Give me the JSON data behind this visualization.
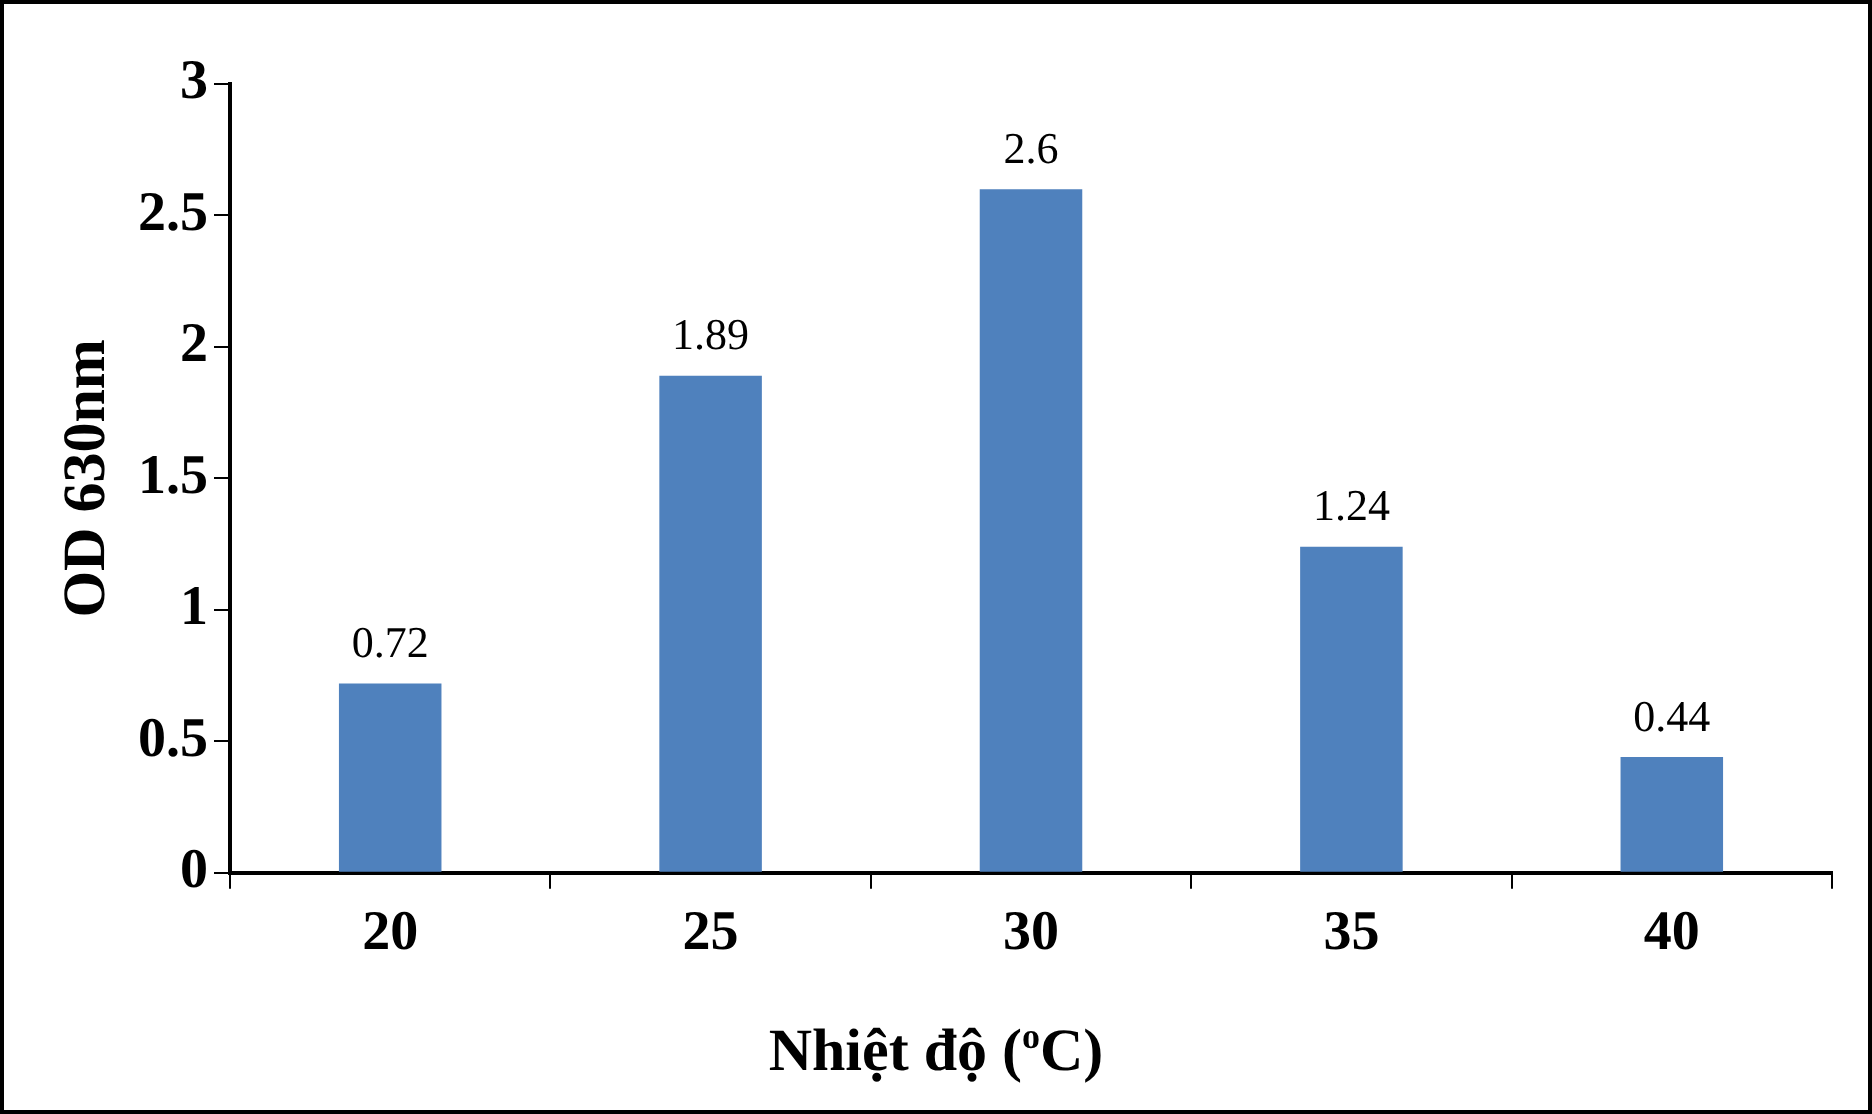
{
  "chart_data": {
    "type": "bar",
    "xlabel": "Nhiệt độ ($^{o}$C)",
    "ylabel": "OD 630nm",
    "categories": [
      "20",
      "25",
      "30",
      "35",
      "40"
    ],
    "values": [
      0.72,
      1.89,
      2.6,
      1.24,
      0.44
    ],
    "color": "#4f81bd",
    "ylim": [
      0,
      3
    ],
    "yticks": [
      0,
      0.5,
      1,
      1.5,
      2,
      2.5,
      3
    ],
    "grid": false,
    "legend": false,
    "data_labels": true
  }
}
